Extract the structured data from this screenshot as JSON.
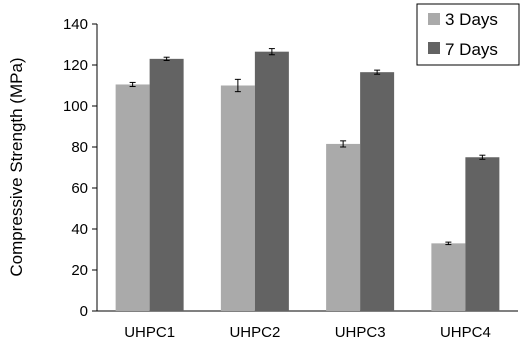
{
  "chart_data": {
    "type": "bar",
    "title": "",
    "xlabel": "",
    "ylabel": "Compressive Strength  (MPa)",
    "ylim": [
      0,
      140
    ],
    "yticks": [
      0,
      20,
      40,
      60,
      80,
      100,
      120,
      140
    ],
    "categories": [
      "UHPC1",
      "UHPC2",
      "UHPC3",
      "UHPC4"
    ],
    "series": [
      {
        "name": "3 Days",
        "color": "#aaaaaa",
        "values": [
          110.5,
          110,
          81.5,
          33
        ],
        "errors": [
          1.0,
          3.0,
          1.5,
          0.6
        ]
      },
      {
        "name": "7 Days",
        "color": "#636363",
        "values": [
          123,
          126.5,
          116.5,
          75
        ],
        "errors": [
          0.8,
          1.5,
          1.0,
          1.0
        ]
      }
    ],
    "legend_position": "top-right",
    "grid": false
  }
}
